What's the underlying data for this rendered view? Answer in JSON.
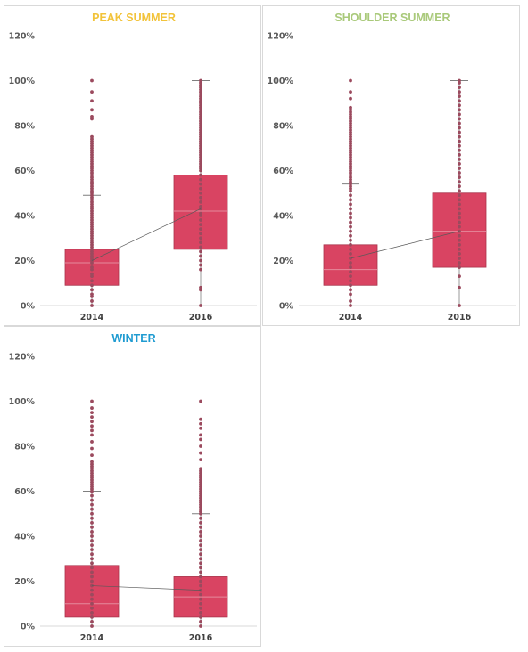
{
  "colors": {
    "box_fill": "#d94462",
    "box_stroke": "#a8344c",
    "point": "#9b4a5e",
    "whisker": "#7f7f7f",
    "mean_line": "#595959",
    "axis": "#d9d9d9"
  },
  "chart_data": [
    {
      "type": "box",
      "title": "PEAK SUMMER",
      "title_color": "#f2c33a",
      "categories": [
        "2014",
        "2016"
      ],
      "y_ticks": [
        "0%",
        "20%",
        "40%",
        "60%",
        "80%",
        "100%",
        "120%"
      ],
      "ylim": [
        0,
        120
      ],
      "boxes": [
        {
          "category": "2014",
          "min": 0,
          "q1": 9,
          "median": 19,
          "q3": 25,
          "whisker_high": 49,
          "mean": 20,
          "points": [
            0,
            2,
            4,
            5,
            7,
            9,
            11,
            13,
            14,
            16,
            17,
            19,
            20,
            21,
            22,
            23,
            24,
            25,
            26,
            27,
            28,
            29,
            30,
            31,
            32,
            33,
            34,
            35,
            36,
            37,
            38,
            39,
            40,
            41,
            42,
            43,
            44,
            45,
            46,
            47,
            48,
            49,
            50,
            51,
            52,
            53,
            54,
            55,
            56,
            57,
            58,
            59,
            60,
            61,
            62,
            63,
            64,
            65,
            66,
            67,
            68,
            69,
            70,
            71,
            72,
            73,
            74,
            75,
            83,
            84,
            87,
            91,
            95,
            100
          ]
        },
        {
          "category": "2016",
          "min": 0,
          "q1": 25,
          "median": 42,
          "q3": 58,
          "whisker_high": 100,
          "mean": 43,
          "points": [
            0,
            7,
            8,
            16,
            18,
            20,
            22,
            24,
            26,
            28,
            30,
            32,
            34,
            36,
            38,
            40,
            41,
            43,
            44,
            46,
            48,
            50,
            52,
            54,
            56,
            58,
            60,
            61,
            62,
            63,
            64,
            65,
            66,
            67,
            68,
            69,
            70,
            71,
            72,
            73,
            74,
            75,
            76,
            77,
            78,
            79,
            80,
            81,
            82,
            83,
            84,
            85,
            86,
            87,
            88,
            89,
            90,
            91,
            92,
            93,
            94,
            95,
            96,
            97,
            98,
            99,
            100
          ]
        }
      ]
    },
    {
      "type": "box",
      "title": "SHOULDER SUMMER",
      "title_color": "#a9c97a",
      "categories": [
        "2014",
        "2016"
      ],
      "y_ticks": [
        "0%",
        "20%",
        "40%",
        "60%",
        "80%",
        "100%",
        "120%"
      ],
      "ylim": [
        0,
        120
      ],
      "boxes": [
        {
          "category": "2014",
          "min": 0,
          "q1": 9,
          "median": 16,
          "q3": 27,
          "whisker_high": 54,
          "mean": 21,
          "points": [
            0,
            2,
            5,
            7,
            9,
            11,
            13,
            15,
            17,
            19,
            21,
            23,
            25,
            27,
            29,
            31,
            33,
            35,
            37,
            39,
            41,
            43,
            45,
            47,
            49,
            51,
            52,
            53,
            54,
            55,
            56,
            57,
            58,
            59,
            60,
            61,
            62,
            63,
            64,
            65,
            66,
            67,
            68,
            69,
            70,
            71,
            72,
            73,
            74,
            75,
            76,
            77,
            78,
            79,
            80,
            81,
            82,
            83,
            84,
            85,
            86,
            87,
            88,
            92,
            95,
            100
          ]
        },
        {
          "category": "2016",
          "min": 0,
          "q1": 17,
          "median": 33,
          "q3": 50,
          "whisker_high": 100,
          "mean": 33,
          "points": [
            0,
            8,
            13,
            17,
            19,
            21,
            23,
            25,
            27,
            29,
            31,
            33,
            35,
            37,
            39,
            41,
            43,
            45,
            47,
            49,
            51,
            53,
            55,
            57,
            59,
            61,
            63,
            65,
            67,
            69,
            71,
            73,
            75,
            77,
            79,
            81,
            83,
            85,
            87,
            89,
            91,
            93,
            95,
            97,
            99,
            100
          ]
        }
      ]
    },
    {
      "type": "box",
      "title": "WINTER",
      "title_color": "#1f9bd1",
      "categories": [
        "2014",
        "2016"
      ],
      "y_ticks": [
        "0%",
        "20%",
        "40%",
        "60%",
        "80%",
        "100%",
        "120%"
      ],
      "ylim": [
        0,
        120
      ],
      "boxes": [
        {
          "category": "2014",
          "min": 0,
          "q1": 4,
          "median": 10,
          "q3": 27,
          "whisker_high": 60,
          "mean": 18,
          "points": [
            0,
            2,
            4,
            6,
            8,
            10,
            12,
            14,
            16,
            18,
            20,
            22,
            24,
            26,
            28,
            30,
            32,
            34,
            36,
            38,
            40,
            42,
            44,
            46,
            48,
            50,
            52,
            54,
            56,
            58,
            60,
            61,
            62,
            63,
            64,
            65,
            66,
            67,
            68,
            69,
            70,
            71,
            72,
            73,
            76,
            79,
            82,
            85,
            87,
            89,
            91,
            93,
            95,
            97,
            100
          ]
        },
        {
          "category": "2016",
          "min": 0,
          "q1": 4,
          "median": 13,
          "q3": 22,
          "whisker_high": 50,
          "mean": 16,
          "points": [
            0,
            2,
            4,
            6,
            8,
            10,
            12,
            14,
            16,
            18,
            20,
            22,
            24,
            26,
            28,
            30,
            32,
            34,
            36,
            38,
            40,
            42,
            44,
            46,
            48,
            50,
            51,
            52,
            53,
            54,
            55,
            56,
            57,
            58,
            59,
            60,
            61,
            62,
            63,
            64,
            65,
            66,
            67,
            68,
            69,
            70,
            74,
            77,
            80,
            83,
            85,
            88,
            90,
            92,
            100
          ]
        }
      ]
    }
  ]
}
